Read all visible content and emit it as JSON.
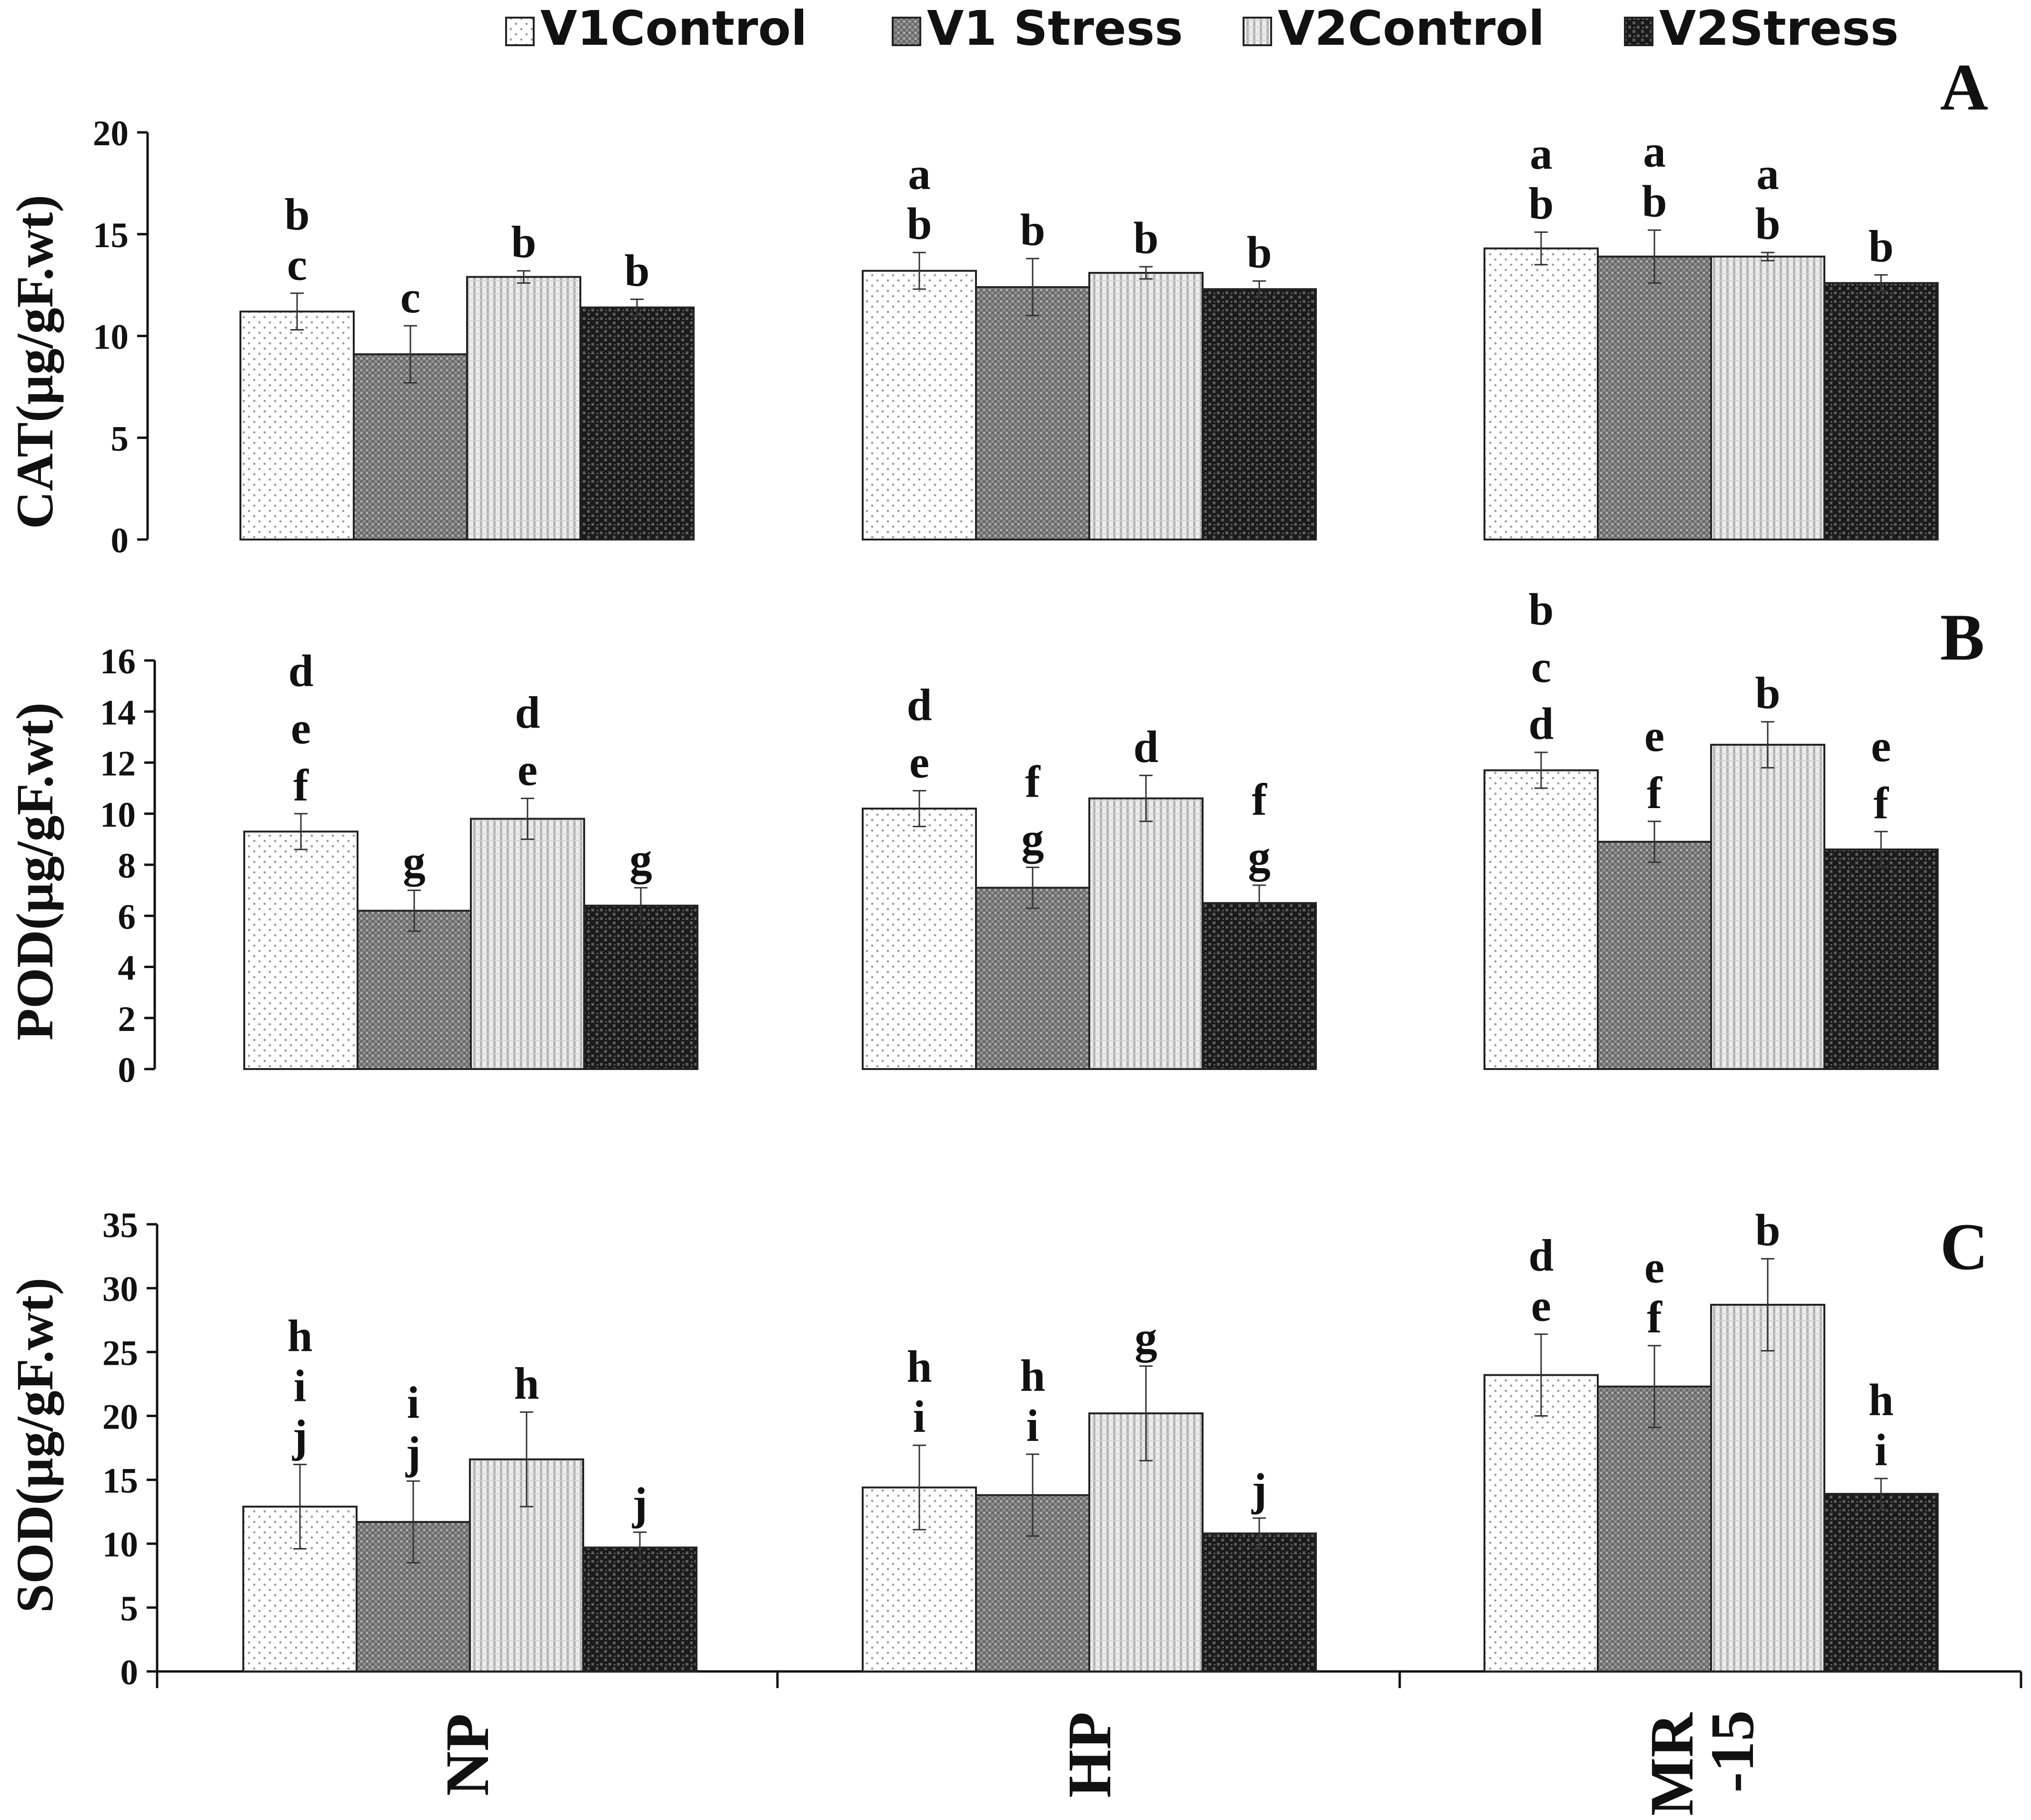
{
  "legend": [
    {
      "label": "V1Control",
      "pattern": "dots"
    },
    {
      "label": "V1 Stress",
      "pattern": "grid"
    },
    {
      "label": "V2Control",
      "pattern": "vlines"
    },
    {
      "label": "V2Stress",
      "pattern": "checker"
    }
  ],
  "colors": {
    "axis": "#111111",
    "bar_outline": "#222222",
    "error_bar": "#333333"
  },
  "chart_data": [
    {
      "type": "bar",
      "panel": "A",
      "ylabel": "CAT(µg/gF.wt)",
      "ylim": [
        0,
        20
      ],
      "yticks": [
        0,
        5,
        10,
        15,
        20
      ],
      "categories": [
        "NP",
        "HP",
        "MR -15"
      ],
      "series": [
        {
          "name": "V1Control",
          "values": [
            11.2,
            13.2,
            14.3
          ],
          "errors": [
            0.9,
            0.9,
            0.8
          ],
          "letters": [
            [
              "b",
              "c"
            ],
            [
              "a",
              "b"
            ],
            [
              "a",
              "b"
            ]
          ]
        },
        {
          "name": "V1 Stress",
          "values": [
            9.1,
            12.4,
            13.9
          ],
          "errors": [
            1.4,
            1.4,
            1.3
          ],
          "letters": [
            [
              "c"
            ],
            [
              "b"
            ],
            [
              "a",
              "b"
            ]
          ]
        },
        {
          "name": "V2Control",
          "values": [
            12.9,
            13.1,
            13.9
          ],
          "errors": [
            0.3,
            0.3,
            0.2
          ],
          "letters": [
            [
              "b"
            ],
            [
              "b"
            ],
            [
              "a",
              "b"
            ]
          ]
        },
        {
          "name": "V2Stress",
          "values": [
            11.4,
            12.3,
            12.6
          ],
          "errors": [
            0.4,
            0.4,
            0.4
          ],
          "letters": [
            [
              "b"
            ],
            [
              "b"
            ],
            [
              "b"
            ]
          ]
        }
      ]
    },
    {
      "type": "bar",
      "panel": "B",
      "ylabel": "POD(µg/gF.wt)",
      "ylim": [
        0,
        16
      ],
      "yticks": [
        0,
        2,
        4,
        6,
        8,
        10,
        12,
        14,
        16
      ],
      "categories": [
        "NP",
        "HP",
        "MR -15"
      ],
      "series": [
        {
          "name": "V1Control",
          "values": [
            9.3,
            10.2,
            11.7
          ],
          "errors": [
            0.7,
            0.7,
            0.7
          ],
          "letters": [
            [
              "d",
              "e",
              "f"
            ],
            [
              "d",
              "e"
            ],
            [
              "b",
              "c",
              "d"
            ]
          ]
        },
        {
          "name": "V1 Stress",
          "values": [
            6.2,
            7.1,
            8.9
          ],
          "errors": [
            0.8,
            0.8,
            0.8
          ],
          "letters": [
            [
              "g"
            ],
            [
              "f",
              "g"
            ],
            [
              "e",
              "f"
            ]
          ]
        },
        {
          "name": "V2Control",
          "values": [
            9.8,
            10.6,
            12.7
          ],
          "errors": [
            0.8,
            0.9,
            0.9
          ],
          "letters": [
            [
              "d",
              "e"
            ],
            [
              "d"
            ],
            [
              "b"
            ]
          ]
        },
        {
          "name": "V2Stress",
          "values": [
            6.4,
            6.5,
            8.6
          ],
          "errors": [
            0.7,
            0.7,
            0.7
          ],
          "letters": [
            [
              "g"
            ],
            [
              "f",
              "g"
            ],
            [
              "e",
              "f"
            ]
          ]
        }
      ]
    },
    {
      "type": "bar",
      "panel": "C",
      "ylabel": "SOD(µg/gF.wt)",
      "ylim": [
        0,
        35
      ],
      "yticks": [
        0,
        5,
        10,
        15,
        20,
        25,
        30,
        35
      ],
      "categories": [
        "NP",
        "HP",
        "MR -15"
      ],
      "series": [
        {
          "name": "V1Control",
          "values": [
            12.9,
            14.4,
            23.2
          ],
          "errors": [
            3.3,
            3.3,
            3.2
          ],
          "letters": [
            [
              "h",
              "i",
              "j"
            ],
            [
              "h",
              "i"
            ],
            [
              "d",
              "e"
            ]
          ]
        },
        {
          "name": "V1 Stress",
          "values": [
            11.7,
            13.8,
            22.3
          ],
          "errors": [
            3.2,
            3.2,
            3.2
          ],
          "letters": [
            [
              "i",
              "j"
            ],
            [
              "h",
              "i"
            ],
            [
              "e",
              "f"
            ]
          ]
        },
        {
          "name": "V2Control",
          "values": [
            16.6,
            20.2,
            28.7
          ],
          "errors": [
            3.7,
            3.7,
            3.6
          ],
          "letters": [
            [
              "h"
            ],
            [
              "g"
            ],
            [
              "b"
            ]
          ]
        },
        {
          "name": "V2Stress",
          "values": [
            9.7,
            10.8,
            13.9
          ],
          "errors": [
            1.2,
            1.2,
            1.2
          ],
          "letters": [
            [
              "j"
            ],
            [
              "j"
            ],
            [
              "h",
              "i"
            ]
          ]
        }
      ]
    }
  ],
  "panel_labels": [
    "A",
    "B",
    "C"
  ],
  "xaxis": {
    "category_labels": [
      [
        "NP"
      ],
      [
        "HP"
      ],
      [
        "MR",
        "-15"
      ]
    ]
  }
}
